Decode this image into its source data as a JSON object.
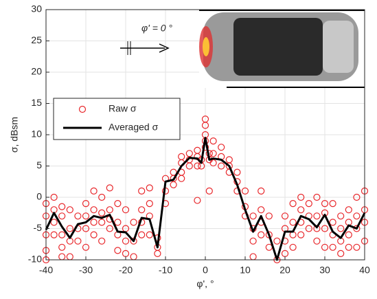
{
  "chart_data": {
    "type": "line",
    "xlabel": "φ', °",
    "ylabel": "σ, dBsm",
    "annotation": "φ' = 0 °",
    "xlim": [
      -40,
      40
    ],
    "ylim": [
      -10,
      30
    ],
    "xticks": [
      -40,
      -30,
      -20,
      -10,
      0,
      10,
      20,
      30,
      40
    ],
    "yticks": [
      -10,
      -5,
      0,
      5,
      10,
      15,
      20,
      25,
      30
    ],
    "grid": true,
    "legend": "center left",
    "series": [
      {
        "name": "Raw σ",
        "type": "scatter",
        "color": "#e8262a",
        "x": [
          -40,
          -40,
          -40,
          -40,
          -40,
          -38,
          -38,
          -38,
          -38,
          -36,
          -36,
          -36,
          -36,
          -36,
          -34,
          -34,
          -34,
          -34,
          -32,
          -32,
          -32,
          -30,
          -30,
          -30,
          -30,
          -28,
          -28,
          -28,
          -28,
          -26,
          -26,
          -26,
          -26,
          -24,
          -24,
          -24,
          -24,
          -22,
          -22,
          -22,
          -22,
          -20,
          -20,
          -20,
          -20,
          -18,
          -18,
          -18,
          -16,
          -16,
          -16,
          -16,
          -14,
          -14,
          -14,
          -14,
          -12,
          -12,
          -12,
          -10,
          -10,
          -10,
          -8,
          -8,
          -8,
          -6,
          -6,
          -6,
          -6,
          -4,
          -4,
          -4,
          -2,
          -2,
          -2,
          -2,
          -1,
          -1,
          0,
          0,
          0,
          0,
          0,
          1,
          1,
          1,
          2,
          2,
          2,
          4,
          4,
          4,
          6,
          6,
          6,
          8,
          8,
          8,
          10,
          10,
          10,
          12,
          12,
          12,
          12,
          14,
          14,
          14,
          14,
          16,
          16,
          16,
          18,
          18,
          20,
          20,
          20,
          20,
          22,
          22,
          22,
          22,
          24,
          24,
          24,
          24,
          26,
          26,
          26,
          28,
          28,
          28,
          28,
          30,
          30,
          30,
          30,
          32,
          32,
          32,
          32,
          34,
          34,
          34,
          34,
          36,
          36,
          36,
          36,
          38,
          38,
          38,
          38,
          40,
          40,
          40,
          40
        ],
        "values": [
          -1,
          -3,
          -6,
          -8.5,
          -10,
          0,
          -2,
          -4,
          -6,
          -1.5,
          -3,
          -6,
          -8,
          -9.5,
          -2,
          -5,
          -7,
          -9.5,
          -3,
          -5,
          -7,
          -1,
          -3,
          -5,
          -8,
          1,
          -2,
          -4,
          -6,
          0,
          -2.5,
          -4,
          -7,
          1.5,
          -2,
          -3.5,
          -5,
          -1,
          -4,
          -6,
          -8.5,
          -2,
          -5,
          -7,
          -9,
          -4,
          -7,
          -9.5,
          1,
          -2,
          -4,
          -6,
          1.5,
          -1,
          -3,
          -6,
          -6.5,
          -8,
          -9,
          3,
          1,
          -1,
          4,
          3,
          2,
          6.5,
          5.5,
          4,
          3,
          7,
          6,
          5,
          7.5,
          6.5,
          5,
          -0.5,
          6,
          5,
          12.5,
          11.5,
          10,
          9,
          8,
          7,
          6,
          1,
          9,
          7,
          5.5,
          8,
          6.5,
          5,
          6,
          5,
          4,
          4,
          2.5,
          1,
          1,
          -1.5,
          -3,
          -3,
          -5,
          -7,
          -9.5,
          1,
          -2,
          -4,
          -6,
          -3,
          -6,
          -8,
          -7,
          -10,
          -3,
          -5,
          -7,
          -9,
          -1,
          -4,
          -6,
          -8,
          0,
          -2,
          -4,
          -6,
          -1,
          -3,
          -5,
          0,
          -3,
          -5,
          -7,
          -1,
          -2.5,
          -5,
          -8,
          -1,
          -4,
          -6,
          -8,
          -3,
          -5,
          -7,
          -9,
          -2,
          -4,
          -6,
          -8,
          0,
          -3,
          -5,
          -8,
          1,
          -2,
          -4,
          -7
        ]
      },
      {
        "name": "Averaged σ",
        "type": "line",
        "color": "#000000",
        "x": [
          -40,
          -38,
          -36,
          -34,
          -32,
          -30,
          -28,
          -26,
          -24,
          -22,
          -20,
          -18,
          -16,
          -14,
          -12,
          -10,
          -8,
          -6,
          -4,
          -2,
          -1,
          0,
          1,
          2,
          4,
          6,
          8,
          10,
          12,
          14,
          16,
          18,
          20,
          22,
          24,
          26,
          28,
          30,
          32,
          34,
          36,
          38,
          40
        ],
        "values": [
          -5.2,
          -2.5,
          -4.7,
          -6.5,
          -4.3,
          -4,
          -3,
          -3.3,
          -2.8,
          -5.5,
          -5.6,
          -7,
          -3.3,
          -3.5,
          -8,
          2.5,
          2.8,
          5,
          6.3,
          6.2,
          5.5,
          9.5,
          6,
          6.2,
          6,
          5,
          2,
          -2,
          -5.5,
          -3,
          -6,
          -10,
          -5.5,
          -5.5,
          -3,
          -3.5,
          -4.8,
          -2.8,
          -5.5,
          -6.5,
          -4.5,
          -5,
          -2.5
        ]
      }
    ]
  }
}
